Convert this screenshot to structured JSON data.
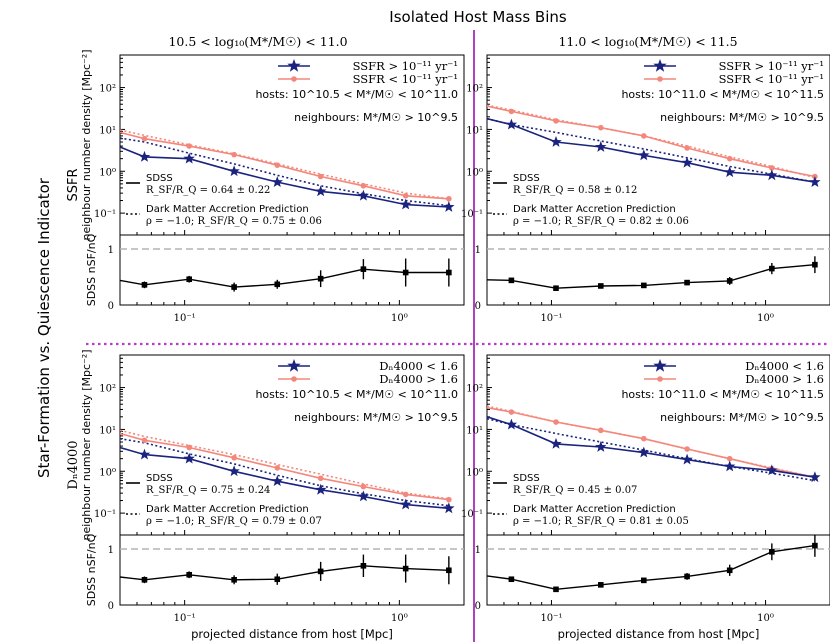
{
  "figure": {
    "top_title": "Isolated Host Mass Bins",
    "col_titles": [
      "10.5 < log₁₀(M*/M☉) < 11.0",
      "11.0 < log₁₀(M*/M☉) < 11.5"
    ],
    "side_title": "Star-Formation vs. Quiescence Indicator",
    "row_titles": [
      "SSFR",
      "Dₙ4000"
    ],
    "colors": {
      "sf": "#1a237e",
      "q": "#f4877b",
      "accent": "#b13fc1",
      "ratio": "#000000",
      "ref": "#b3b3b3"
    }
  },
  "chart_data": [
    {
      "type": "line",
      "panel": "top-left",
      "xlabel": "",
      "ylabel": "neighbour number density [Mpc⁻²]",
      "ratio_ylabel": "SDSS nSF/nQ",
      "xscale": "log",
      "xlim": [
        0.05,
        2.0
      ],
      "ylim": [
        0.03,
        600
      ],
      "ratio_ylim": [
        0,
        1.25
      ],
      "x_ticks": [
        "10⁻¹",
        "10⁰"
      ],
      "y_ticks": [
        "10⁻¹",
        "10⁰",
        "10¹",
        "10²"
      ],
      "ratio_y_ticks": [
        "0",
        "1"
      ],
      "legend": [
        {
          "key": "sf",
          "label": "SSFR > 10⁻¹¹ yr⁻¹"
        },
        {
          "key": "q",
          "label": "SSFR < 10⁻¹¹ yr⁻¹"
        }
      ],
      "hosts_text": "hosts: 10^10.5 < M*/M☉ < 10^11.0",
      "neighbours_text": "neighbours: M*/M☉ > 10^9.5",
      "lower_legend": {
        "sdss_label": "SDSS",
        "sdss_value": "R_SF/R_Q = 0.64 ± 0.22",
        "dm_label": "Dark Matter Accretion Prediction",
        "dm_value": "ρ = −1.0; R_SF/R_Q = 0.75 ± 0.06"
      },
      "x": [
        0.065,
        0.105,
        0.17,
        0.27,
        0.43,
        0.68,
        1.07,
        1.7
      ],
      "series": [
        {
          "name": "star-forming",
          "values": [
            2.2,
            2.0,
            1.0,
            0.55,
            0.33,
            0.26,
            0.16,
            0.14
          ]
        },
        {
          "name": "quiescent",
          "values": [
            6.0,
            4.0,
            2.5,
            1.4,
            0.75,
            0.45,
            0.26,
            0.22
          ]
        },
        {
          "name": "quiescent-pred",
          "values": [
            7.2,
            4.3,
            2.6,
            1.5,
            0.85,
            0.5,
            0.3,
            0.22
          ]
        },
        {
          "name": "sf-pred",
          "values": [
            5.0,
            2.7,
            1.5,
            0.8,
            0.45,
            0.29,
            0.2,
            0.15
          ]
        }
      ],
      "x_start": 0.05,
      "sf_start": 3.8,
      "q_start": 8.5,
      "q_pred_start": 9.7,
      "sf_pred_start": 6.2,
      "ratio_x": [
        0.065,
        0.105,
        0.17,
        0.27,
        0.43,
        0.68,
        1.07,
        1.7
      ],
      "ratio": [
        0.36,
        0.46,
        0.32,
        0.37,
        0.47,
        0.64,
        0.58,
        0.58
      ],
      "ratio_err": [
        0.06,
        0.06,
        0.08,
        0.08,
        0.15,
        0.18,
        0.25,
        0.25
      ],
      "ratio_start": 0.44
    },
    {
      "type": "line",
      "panel": "top-right",
      "xlabel": "",
      "ylabel": "",
      "ratio_ylabel": "",
      "xscale": "log",
      "xlim": [
        0.05,
        2.0
      ],
      "ylim": [
        0.03,
        600
      ],
      "ratio_ylim": [
        0,
        1.25
      ],
      "x_ticks": [
        "10⁻¹",
        "10⁰"
      ],
      "y_ticks": [
        "10⁻¹",
        "10⁰",
        "10¹",
        "10²"
      ],
      "ratio_y_ticks": [
        "0",
        "1"
      ],
      "legend": [
        {
          "key": "sf",
          "label": "SSFR > 10⁻¹¹ yr⁻¹"
        },
        {
          "key": "q",
          "label": "SSFR < 10⁻¹¹ yr⁻¹"
        }
      ],
      "hosts_text": "hosts: 10^11.0 < M*/M☉ < 10^11.5",
      "neighbours_text": "neighbours: M*/M☉ > 10^9.5",
      "lower_legend": {
        "sdss_label": "SDSS",
        "sdss_value": "R_SF/R_Q = 0.58 ± 0.12",
        "dm_label": "Dark Matter Accretion Prediction",
        "dm_value": "ρ = −1.0; R_SF/R_Q = 0.82 ± 0.06"
      },
      "x": [
        0.065,
        0.105,
        0.17,
        0.27,
        0.43,
        0.68,
        1.07,
        1.7
      ],
      "series": [
        {
          "name": "star-forming",
          "values": [
            13,
            5.0,
            3.8,
            2.4,
            1.6,
            0.95,
            0.8,
            0.55
          ]
        },
        {
          "name": "quiescent",
          "values": [
            27,
            16,
            11,
            7.0,
            3.6,
            2.0,
            1.2,
            0.75
          ]
        },
        {
          "name": "quiescent-pred",
          "values": [
            29,
            17,
            11,
            7.0,
            4.0,
            2.2,
            1.3,
            0.7
          ]
        },
        {
          "name": "sf-pred",
          "values": [
            13,
            8.5,
            5.3,
            3.4,
            2.1,
            1.3,
            0.85,
            0.55
          ]
        }
      ],
      "x_start": 0.05,
      "sf_start": 18,
      "q_start": 36,
      "q_pred_start": 38,
      "sf_pred_start": 18,
      "ratio_x": [
        0.065,
        0.105,
        0.17,
        0.27,
        0.43,
        0.68,
        1.07,
        1.7
      ],
      "ratio": [
        0.44,
        0.3,
        0.34,
        0.35,
        0.4,
        0.43,
        0.65,
        0.72
      ],
      "ratio_err": [
        0.03,
        0.03,
        0.03,
        0.03,
        0.04,
        0.07,
        0.1,
        0.15
      ],
      "ratio_start": 0.45
    },
    {
      "type": "line",
      "panel": "bottom-left",
      "xlabel": "projected distance from host [Mpc]",
      "ylabel": "neighbour number density [Mpc⁻²]",
      "ratio_ylabel": "SDSS nSF/nQ",
      "xscale": "log",
      "xlim": [
        0.05,
        2.0
      ],
      "ylim": [
        0.03,
        600
      ],
      "ratio_ylim": [
        0,
        1.25
      ],
      "x_ticks": [
        "10⁻¹",
        "10⁰"
      ],
      "y_ticks": [
        "10⁻¹",
        "10⁰",
        "10¹",
        "10²"
      ],
      "ratio_y_ticks": [
        "0",
        "1"
      ],
      "legend": [
        {
          "key": "sf",
          "label": "Dₙ4000 < 1.6"
        },
        {
          "key": "q",
          "label": "Dₙ4000 > 1.6"
        }
      ],
      "hosts_text": "hosts: 10^10.5 < M*/M☉ < 10^11.0",
      "neighbours_text": "neighbours: M*/M☉ > 10^9.5",
      "lower_legend": {
        "sdss_label": "SDSS",
        "sdss_value": "R_SF/R_Q = 0.75 ± 0.24",
        "dm_label": "Dark Matter Accretion Prediction",
        "dm_value": "ρ = −1.0; R_SF/R_Q = 0.79 ± 0.07"
      },
      "x": [
        0.065,
        0.105,
        0.17,
        0.27,
        0.43,
        0.68,
        1.07,
        1.7
      ],
      "series": [
        {
          "name": "star-forming",
          "values": [
            2.5,
            2.0,
            1.0,
            0.58,
            0.36,
            0.25,
            0.16,
            0.13
          ]
        },
        {
          "name": "quiescent",
          "values": [
            5.5,
            3.7,
            2.1,
            1.2,
            0.68,
            0.43,
            0.28,
            0.21
          ]
        },
        {
          "name": "quiescent-pred",
          "values": [
            6.8,
            4.1,
            2.5,
            1.45,
            0.85,
            0.5,
            0.3,
            0.22
          ]
        },
        {
          "name": "sf-pred",
          "values": [
            4.8,
            2.6,
            1.5,
            0.8,
            0.45,
            0.29,
            0.2,
            0.15
          ]
        }
      ],
      "x_start": 0.05,
      "sf_start": 3.7,
      "q_start": 8.0,
      "q_pred_start": 9.5,
      "sf_pred_start": 6.0,
      "ratio_x": [
        0.065,
        0.105,
        0.17,
        0.27,
        0.43,
        0.68,
        1.07,
        1.7
      ],
      "ratio": [
        0.45,
        0.54,
        0.45,
        0.46,
        0.6,
        0.7,
        0.65,
        0.62
      ],
      "ratio_err": [
        0.06,
        0.06,
        0.08,
        0.1,
        0.17,
        0.2,
        0.25,
        0.25
      ],
      "ratio_start": 0.5
    },
    {
      "type": "line",
      "panel": "bottom-right",
      "xlabel": "projected distance from host [Mpc]",
      "ylabel": "",
      "ratio_ylabel": "",
      "xscale": "log",
      "xlim": [
        0.05,
        2.0
      ],
      "ylim": [
        0.03,
        600
      ],
      "ratio_ylim": [
        0,
        1.25
      ],
      "x_ticks": [
        "10⁻¹",
        "10⁰"
      ],
      "y_ticks": [
        "10⁻¹",
        "10⁰",
        "10¹",
        "10²"
      ],
      "ratio_y_ticks": [
        "0",
        "1"
      ],
      "legend": [
        {
          "key": "sf",
          "label": "Dₙ4000 < 1.6"
        },
        {
          "key": "q",
          "label": "Dₙ4000 > 1.6"
        }
      ],
      "hosts_text": "hosts: 10^11.0 < M*/M☉ < 10^11.5",
      "neighbours_text": "neighbours: M*/M☉ > 10^9.5",
      "lower_legend": {
        "sdss_label": "SDSS",
        "sdss_value": "R_SF/R_Q = 0.45 ± 0.07",
        "dm_label": "Dark Matter Accretion Prediction",
        "dm_value": "ρ = −1.0; R_SF/R_Q = 0.81 ± 0.05"
      },
      "x": [
        0.065,
        0.105,
        0.17,
        0.27,
        0.43,
        0.68,
        1.07,
        1.7
      ],
      "series": [
        {
          "name": "star-forming",
          "values": [
            13,
            4.5,
            3.8,
            2.8,
            1.9,
            1.3,
            1.05,
            0.72
          ]
        },
        {
          "name": "quiescent",
          "values": [
            26,
            15,
            9.5,
            6.0,
            3.4,
            2.0,
            1.15,
            0.72
          ]
        },
        {
          "name": "quiescent-pred",
          "values": [
            27,
            15,
            9.5,
            6.0,
            3.4,
            2.0,
            1.2,
            0.72
          ]
        },
        {
          "name": "sf-pred",
          "values": [
            13,
            8.0,
            5.0,
            3.2,
            2.0,
            1.3,
            0.9,
            0.6
          ]
        }
      ],
      "x_start": 0.05,
      "sf_start": 20,
      "q_start": 33,
      "q_pred_start": 36,
      "sf_pred_start": 18,
      "ratio_x": [
        0.065,
        0.105,
        0.17,
        0.27,
        0.43,
        0.68,
        1.07,
        1.7
      ],
      "ratio": [
        0.46,
        0.28,
        0.36,
        0.44,
        0.51,
        0.62,
        0.95,
        1.06
      ],
      "ratio_err": [
        0.03,
        0.03,
        0.03,
        0.04,
        0.06,
        0.1,
        0.15,
        0.2
      ],
      "ratio_start": 0.52
    }
  ]
}
